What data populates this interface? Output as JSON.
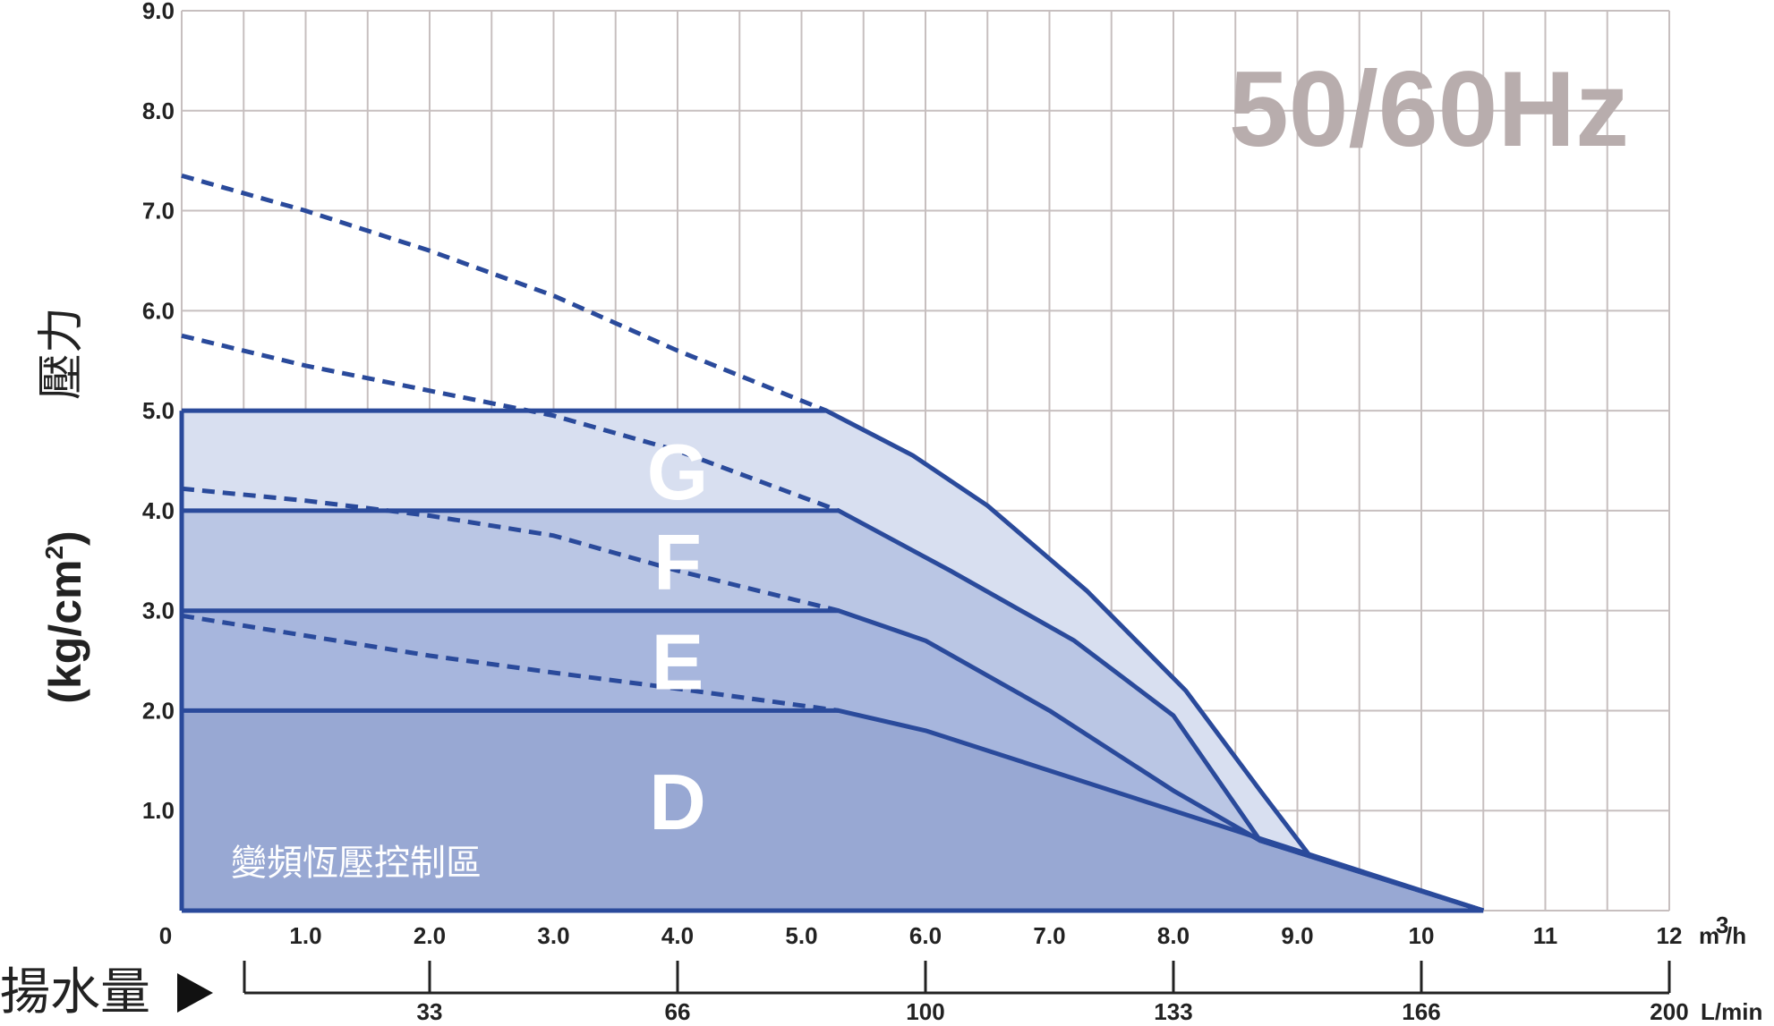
{
  "chart_data": {
    "type": "area",
    "title_badge": "50/60Hz",
    "ylabel_cjk": "壓力",
    "ylabel_unit": "(kg/cm2)",
    "xlabel": "揚水量",
    "x_unit_top": "m3/h",
    "x_unit_bottom": "L/min",
    "region_label": "變頻恆壓控制區",
    "ylim": [
      0,
      9
    ],
    "xlim": [
      0,
      12
    ],
    "y_ticks": [
      "9.0",
      "8.0",
      "7.0",
      "6.0",
      "5.0",
      "4.0",
      "3.0",
      "2.0",
      "1.0"
    ],
    "x_ticks_top": [
      "0",
      "1.0",
      "2.0",
      "3.0",
      "4.0",
      "5.0",
      "6.0",
      "7.0",
      "8.0",
      "9.0",
      "10",
      "11",
      "12"
    ],
    "x_ticks_bottom": [
      {
        "x": 1.5,
        "label": "33"
      },
      {
        "x": 3.5,
        "label": "66"
      },
      {
        "x": 5.5,
        "label": "100"
      },
      {
        "x": 7.5,
        "label": "133"
      },
      {
        "x": 9.5,
        "label": "166"
      },
      {
        "x": 11.5,
        "label": "200"
      }
    ],
    "grid": true,
    "series": [
      {
        "name": "G",
        "fill": "#d8dff0",
        "label_pos": [
          4.0,
          4.4
        ],
        "points": [
          [
            0,
            5.0
          ],
          [
            5.2,
            5.0
          ],
          [
            5.9,
            4.55
          ],
          [
            6.5,
            4.05
          ],
          [
            7.3,
            3.2
          ],
          [
            8.1,
            2.2
          ],
          [
            8.7,
            1.2
          ],
          [
            9.1,
            0.55
          ],
          [
            10.5,
            0.0
          ]
        ],
        "dashed": [
          [
            0,
            7.35
          ],
          [
            1.0,
            7.0
          ],
          [
            2.0,
            6.6
          ],
          [
            3.0,
            6.15
          ],
          [
            4.0,
            5.6
          ],
          [
            5.2,
            5.0
          ]
        ]
      },
      {
        "name": "F",
        "fill": "#bac6e4",
        "label_pos": [
          4.0,
          3.5
        ],
        "points": [
          [
            0,
            4.0
          ],
          [
            5.3,
            4.0
          ],
          [
            6.2,
            3.4
          ],
          [
            7.2,
            2.7
          ],
          [
            8.0,
            1.95
          ],
          [
            8.7,
            0.7
          ],
          [
            10.5,
            0.0
          ]
        ],
        "dashed": [
          [
            0,
            5.75
          ],
          [
            1.0,
            5.45
          ],
          [
            2.0,
            5.2
          ],
          [
            3.0,
            4.95
          ],
          [
            4.0,
            4.6
          ],
          [
            5.3,
            4.0
          ]
        ]
      },
      {
        "name": "E",
        "fill": "#a7b6dd",
        "label_pos": [
          4.0,
          2.5
        ],
        "points": [
          [
            0,
            3.0
          ],
          [
            5.3,
            3.0
          ],
          [
            6.0,
            2.7
          ],
          [
            7.0,
            2.0
          ],
          [
            8.0,
            1.2
          ],
          [
            8.7,
            0.7
          ],
          [
            10.5,
            0.0
          ]
        ],
        "dashed": [
          [
            0,
            4.22
          ],
          [
            1.0,
            4.1
          ],
          [
            2.0,
            3.95
          ],
          [
            3.0,
            3.75
          ],
          [
            4.0,
            3.4
          ],
          [
            5.3,
            3.0
          ]
        ]
      },
      {
        "name": "D",
        "fill": "#98a8d3",
        "label_pos": [
          4.0,
          1.1
        ],
        "points": [
          [
            0,
            2.0
          ],
          [
            5.3,
            2.0
          ],
          [
            6.0,
            1.8
          ],
          [
            7.0,
            1.4
          ],
          [
            8.0,
            1.0
          ],
          [
            9.0,
            0.6
          ],
          [
            10.5,
            0.0
          ]
        ],
        "dashed": [
          [
            0,
            2.95
          ],
          [
            1.0,
            2.75
          ],
          [
            2.0,
            2.55
          ],
          [
            3.0,
            2.38
          ],
          [
            4.0,
            2.22
          ],
          [
            5.3,
            2.0
          ]
        ]
      }
    ],
    "line_color": "#2a4a9b",
    "grid_color": "#c7bfbf"
  }
}
